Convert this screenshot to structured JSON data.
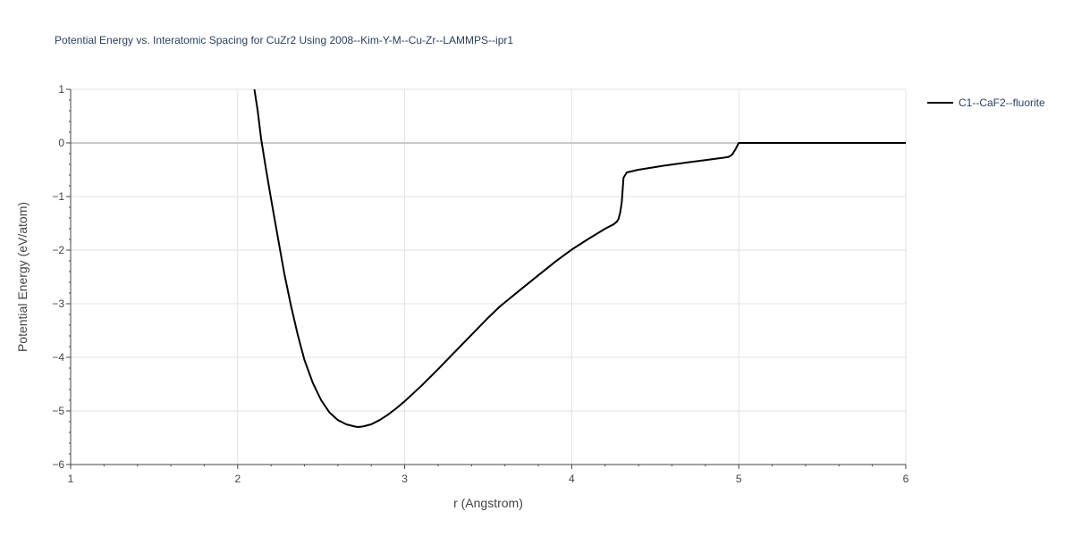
{
  "chart_data": {
    "type": "line",
    "title": "Potential Energy vs. Interatomic Spacing for CuZr2 Using 2008--Kim-Y-M--Cu-Zr--LAMMPS--ipr1",
    "xlabel": "r (Angstrom)",
    "ylabel": "Potential Energy (eV/atom)",
    "xlim": [
      1,
      6
    ],
    "ylim": [
      -6,
      1
    ],
    "x_ticks": [
      "1",
      "2",
      "3",
      "4",
      "5",
      "6"
    ],
    "y_ticks": [
      "1",
      "0",
      "−1",
      "−2",
      "−3",
      "−4",
      "−5",
      "−6"
    ],
    "grid": true,
    "legend_position": "top-right",
    "series": [
      {
        "name": "C1--CaF2--fluorite",
        "color": "#000000",
        "x": [
          2.1,
          2.12,
          2.14,
          2.17,
          2.2,
          2.24,
          2.28,
          2.32,
          2.36,
          2.4,
          2.45,
          2.5,
          2.55,
          2.6,
          2.65,
          2.7,
          2.72,
          2.75,
          2.8,
          2.85,
          2.9,
          2.95,
          3.0,
          3.1,
          3.2,
          3.3,
          3.4,
          3.5,
          3.57,
          3.7,
          3.8,
          3.9,
          4.0,
          4.1,
          4.2,
          4.25,
          4.27,
          4.28,
          4.29,
          4.3,
          4.31,
          4.33,
          4.4,
          4.5,
          4.56,
          4.7,
          4.8,
          4.9,
          4.94,
          4.96,
          4.98,
          5.0,
          5.1,
          5.5,
          6.0
        ],
        "y": [
          1.0,
          0.6,
          0.08,
          -0.5,
          -1.05,
          -1.75,
          -2.45,
          -3.05,
          -3.58,
          -4.05,
          -4.48,
          -4.8,
          -5.03,
          -5.17,
          -5.25,
          -5.29,
          -5.3,
          -5.29,
          -5.25,
          -5.17,
          -5.07,
          -4.95,
          -4.82,
          -4.53,
          -4.22,
          -3.9,
          -3.58,
          -3.26,
          -3.05,
          -2.72,
          -2.47,
          -2.22,
          -1.99,
          -1.79,
          -1.6,
          -1.52,
          -1.47,
          -1.42,
          -1.3,
          -1.1,
          -0.65,
          -0.55,
          -0.5,
          -0.45,
          -0.42,
          -0.36,
          -0.32,
          -0.28,
          -0.26,
          -0.22,
          -0.12,
          0.0,
          0.0,
          0.0,
          0.0
        ]
      }
    ]
  }
}
